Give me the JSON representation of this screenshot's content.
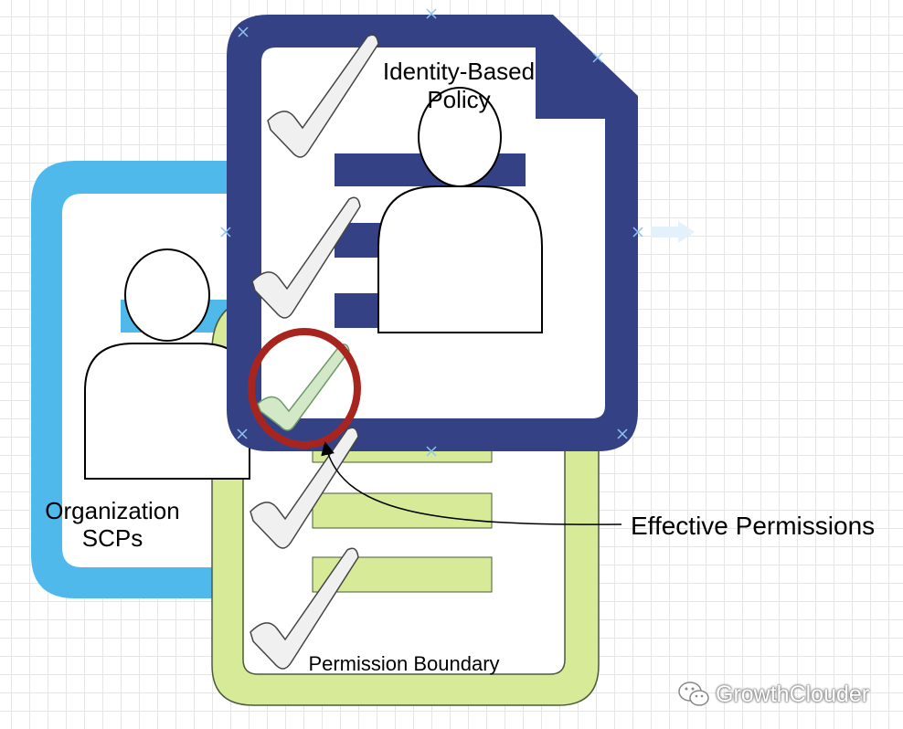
{
  "labels": {
    "identity_policy_line1": "Identity-Based",
    "identity_policy_line2": "Policy",
    "scp_line1": "Organization",
    "scp_line2": "SCPs",
    "effective_permissions": "Effective Permissions",
    "permission_boundary": "Permission Boundary",
    "watermark": "GrowthClouder"
  },
  "icons": {
    "user": "user-icon",
    "check": "checkmark-icon",
    "document": "document-icon",
    "watermark": "wechat-icon"
  },
  "colors": {
    "identity_policy": "#344285",
    "scp": "#4fb9eb",
    "permission_boundary": "#d6ea98",
    "effective_circle": "#a8241e",
    "checkmark_fill": "#f0f0f0",
    "effective_check": "#d3e8c6",
    "selection_handle": "#8fc4ee"
  }
}
